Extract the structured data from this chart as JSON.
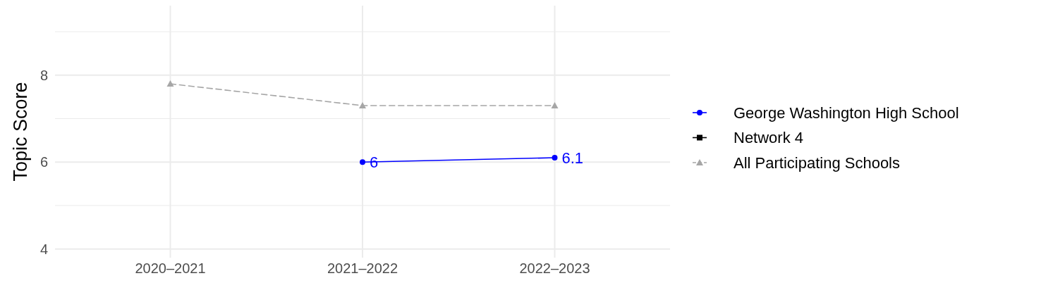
{
  "chart_data": {
    "type": "line",
    "ylabel": "Topic Score",
    "categories": [
      "2020–2021",
      "2021–2022",
      "2022–2023"
    ],
    "ylim": [
      3.8,
      9.6
    ],
    "yticks": [
      4,
      {
        "value": 5,
        "label": null
      },
      6,
      {
        "value": 7,
        "label": null
      },
      8,
      {
        "value": 9,
        "label": null
      }
    ],
    "grid": true,
    "legend": "right",
    "series": [
      {
        "name": "George Washington High School",
        "color": "#0000ff",
        "marker": "circle",
        "line_style": "solid",
        "values": [
          null,
          6,
          6.1
        ],
        "value_labels": [
          null,
          "6",
          "6.1"
        ]
      },
      {
        "name": "Network 4",
        "color": "#000000",
        "marker": "square",
        "line_style": "solid",
        "values": [
          null,
          null,
          null
        ]
      },
      {
        "name": "All Participating Schools",
        "color": "#a6a6a6",
        "marker": "triangle",
        "line_style": "dashed",
        "values": [
          7.8,
          7.3,
          7.3
        ]
      }
    ]
  }
}
